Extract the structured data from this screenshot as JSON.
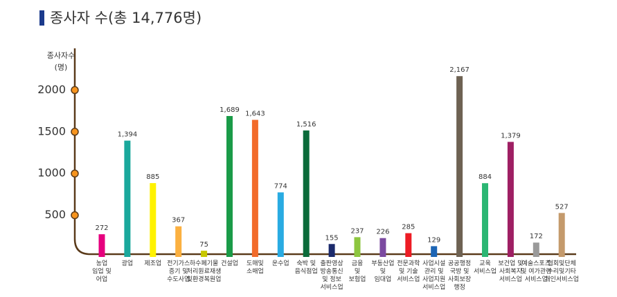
{
  "chart_data": {
    "type": "bar",
    "title": "종사자 수(총 14,776명)",
    "y_label": "종사자수\n(명)",
    "categories": [
      "농업\n임업 및\n어업",
      "광업",
      "제조업",
      "전기가스\n증기 및\n수도사업",
      "하수폐기물\n처리원료재생\n및환경복원업",
      "건설업",
      "도매및\n소매업",
      "운수업",
      "숙박 및\n음식점업",
      "출판영상\n방송통신\n및 정보\n서비스업",
      "금융\n및\n보험업",
      "부동산업\n및\n임대업",
      "전문과학\n및 기술\n서비스업",
      "사업시설\n관리 및\n사업지원\n서비스업",
      "공공행정\n국방 및\n사회보장\n행정",
      "교육\n서비스업",
      "보건업 및\n사회복지\n서비스업",
      "예술스포츠\n및 여가관련\n서비스업",
      "협회및단체\n수리및기타\n개인서비스업"
    ],
    "values": [
      272,
      1394,
      885,
      367,
      75,
      1689,
      1643,
      774,
      1516,
      155,
      237,
      226,
      285,
      129,
      2167,
      884,
      1379,
      172,
      527
    ],
    "value_labels": [
      "272",
      "1,394",
      "885",
      "367",
      "75",
      "1,689",
      "1,643",
      "774",
      "1,516",
      "155",
      "237",
      "226",
      "285",
      "129",
      "2,167",
      "884",
      "1,379",
      "172",
      "527"
    ],
    "colors": [
      "#e6007e",
      "#1aa89c",
      "#fff200",
      "#fbb040",
      "#c8c800",
      "#1a9b48",
      "#f26b2a",
      "#29abe2",
      "#0b6b3a",
      "#1b2a6b",
      "#8dc63f",
      "#7b4aa0",
      "#ed1c24",
      "#1c64b4",
      "#6e6253",
      "#2bb673",
      "#9e1f63",
      "#9a9a9a",
      "#c49a6c"
    ],
    "ylim": [
      0,
      2500
    ],
    "yticks": [
      500,
      1000,
      1500,
      2000
    ],
    "grid": false
  }
}
